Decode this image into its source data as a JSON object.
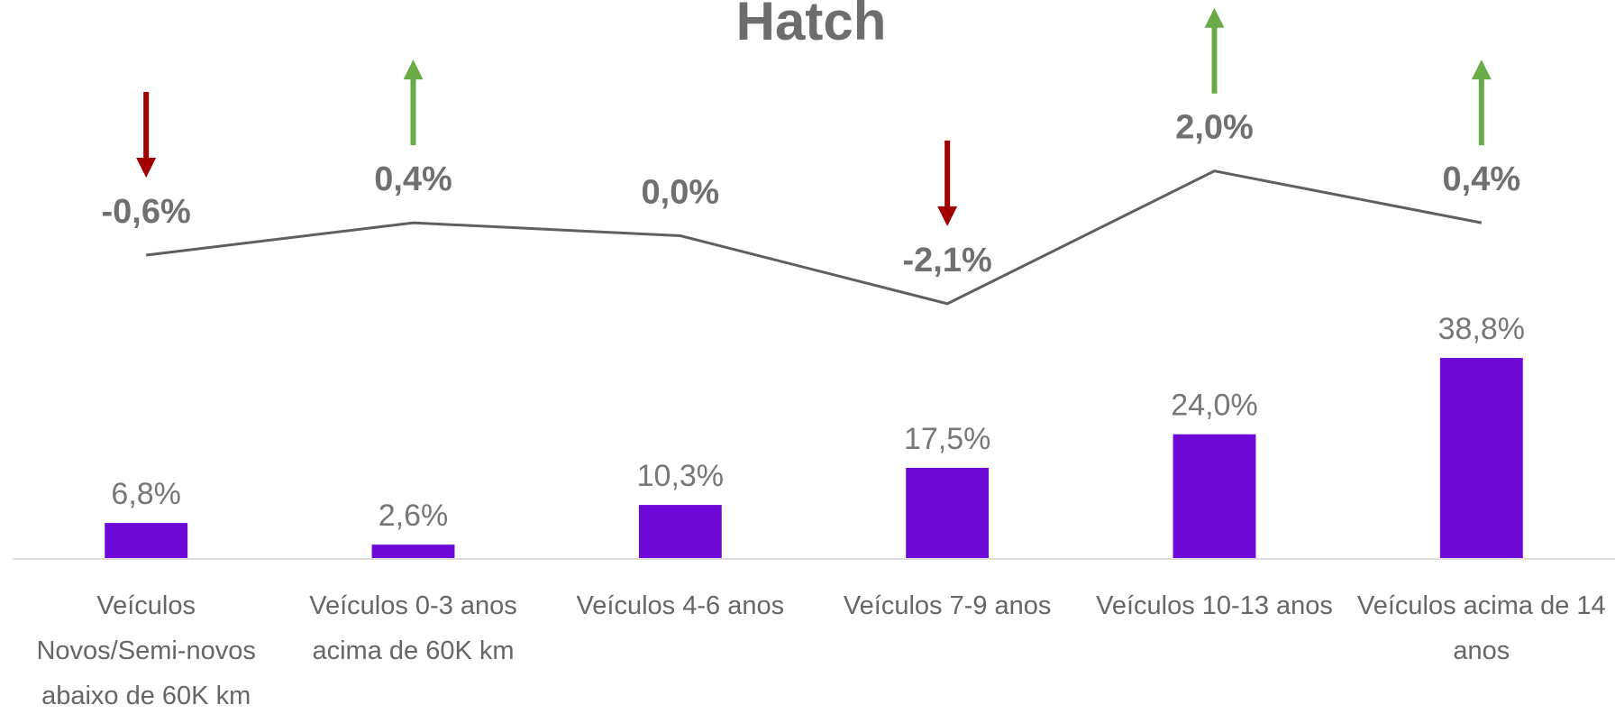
{
  "chart_data": {
    "type": "bar",
    "title": "Hatch",
    "categories": [
      "Veículos Novos/Semi-novos abaixo de 60K km",
      "Veículos 0-3 anos acima de 60K km",
      "Veículos 4-6 anos",
      "Veículos 7-9 anos",
      "Veículos 10-13 anos",
      "Veículos acima de 14 anos"
    ],
    "ylim": [
      0,
      50
    ],
    "y2lim": [
      -5,
      5
    ],
    "series": [
      {
        "type": "bar",
        "color": "#6e0ad8",
        "values": [
          6.8,
          2.6,
          10.3,
          17.5,
          24.0,
          38.8
        ],
        "value_labels": [
          "6,8%",
          "2,6%",
          "10,3%",
          "17,5%",
          "24,0%",
          "38,8%"
        ]
      },
      {
        "type": "line",
        "axis": "y2",
        "color": "#5f5f5f",
        "values": [
          -0.6,
          0.4,
          0.0,
          -2.1,
          2.0,
          0.4
        ],
        "value_labels": [
          "-0,6%",
          "0,4%",
          "0,0%",
          "-2,1%",
          "2,0%",
          "0,4%"
        ],
        "up_color": "#6aab48",
        "down_color": "#a00000"
      }
    ]
  }
}
